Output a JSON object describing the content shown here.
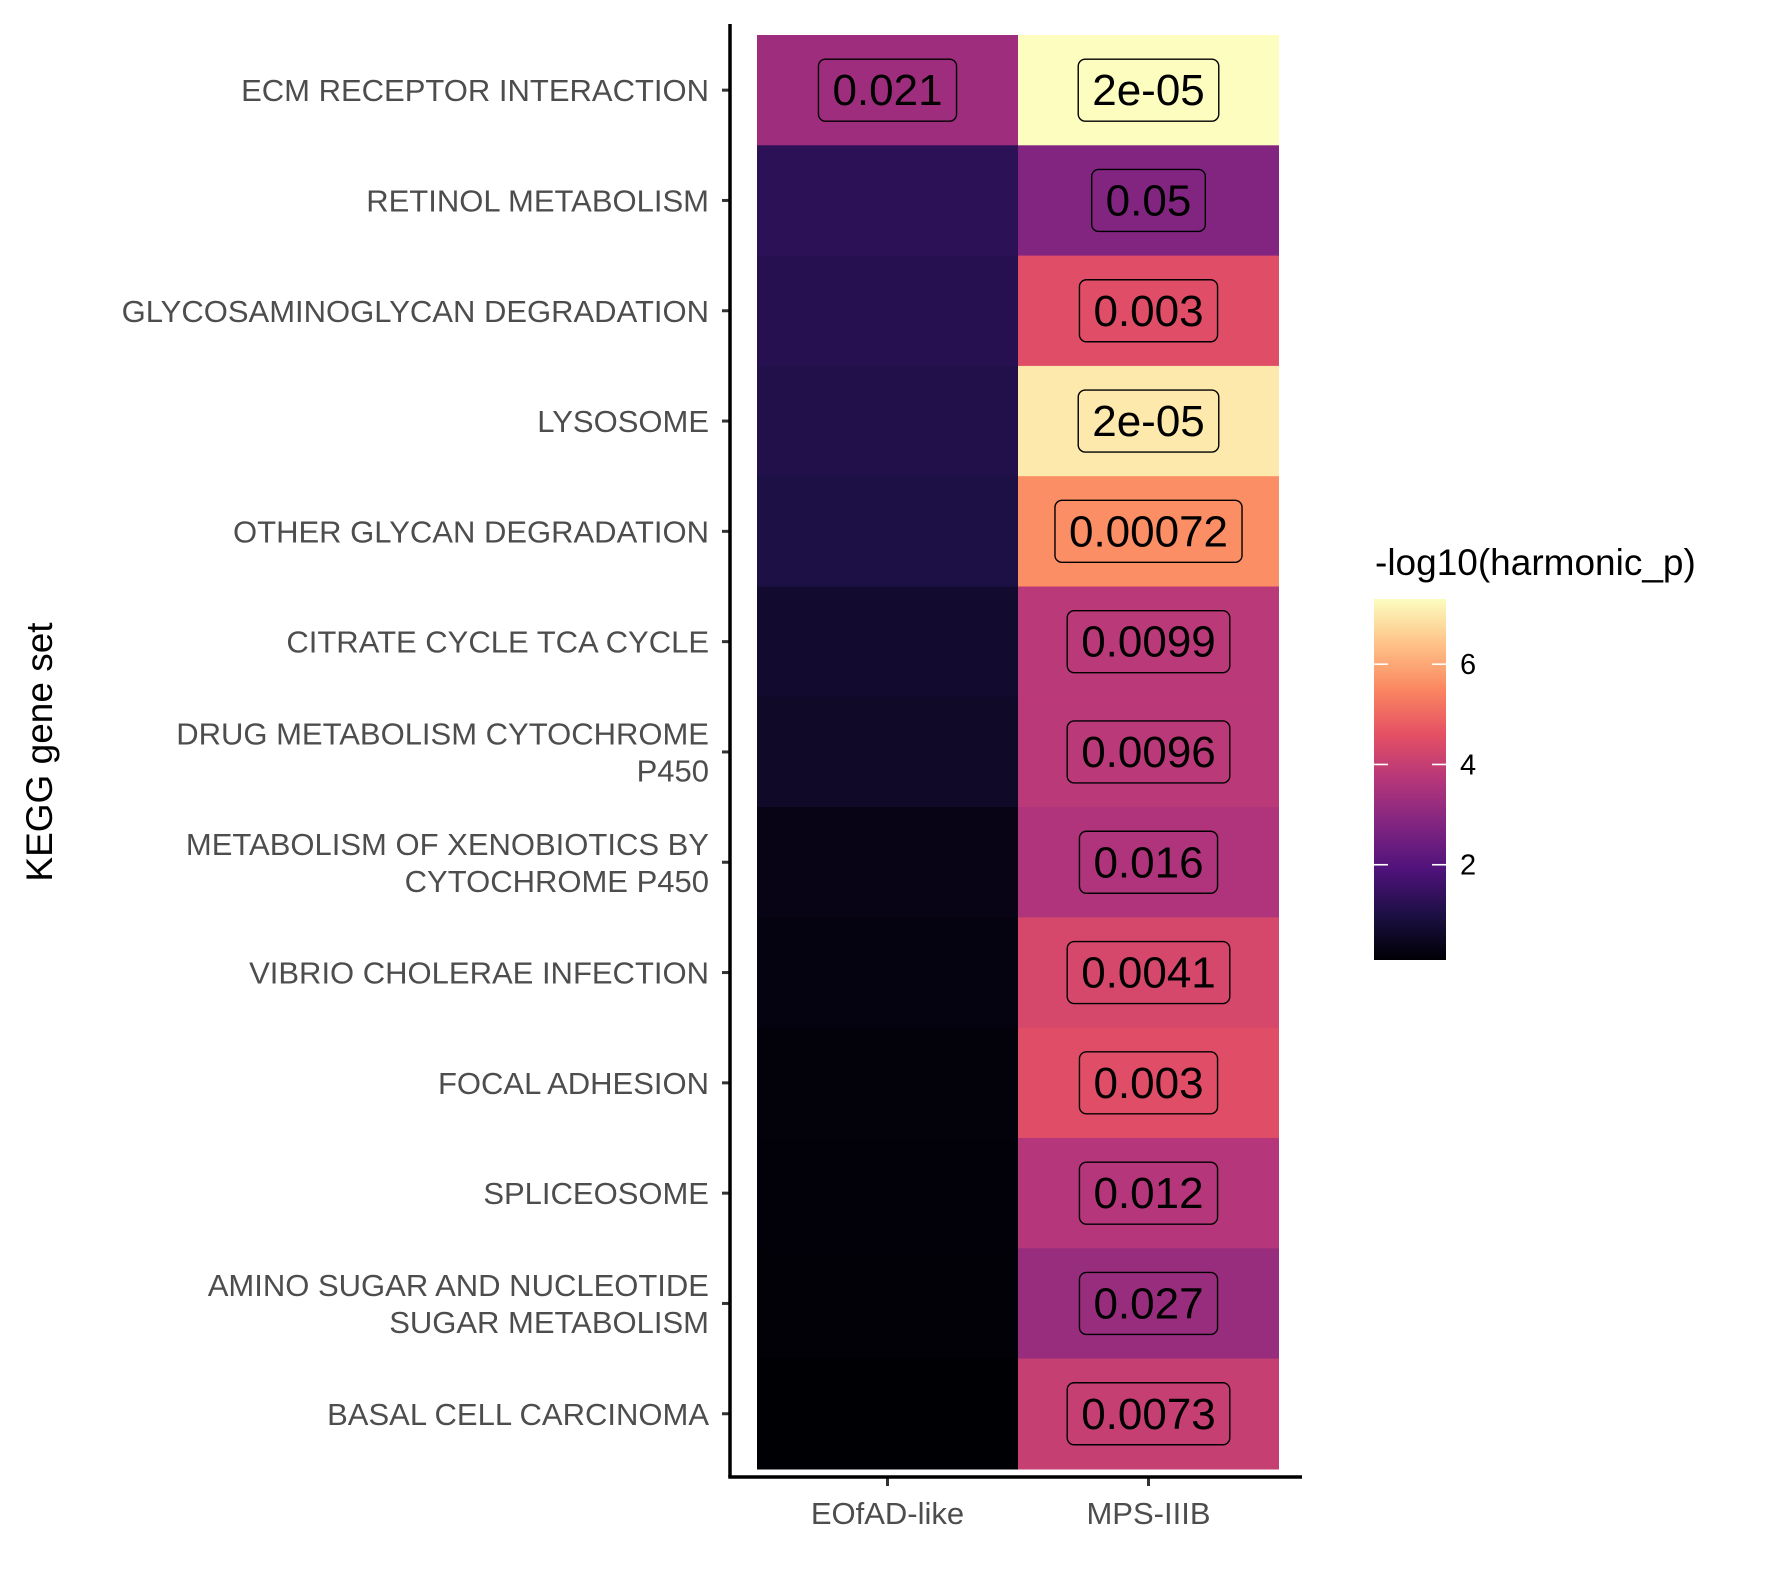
{
  "chart_data": {
    "type": "heatmap",
    "ylabel": "KEGG gene set",
    "xlabel": "",
    "x_categories": [
      "EOfAD-like",
      "MPS-IIIB"
    ],
    "y_categories": [
      [
        "ECM RECEPTOR INTERACTION"
      ],
      [
        "RETINOL METABOLISM"
      ],
      [
        "GLYCOSAMINOGLYCAN DEGRADATION"
      ],
      [
        "LYSOSOME"
      ],
      [
        "OTHER GLYCAN DEGRADATION"
      ],
      [
        "CITRATE CYCLE TCA CYCLE"
      ],
      [
        "DRUG METABOLISM CYTOCHROME",
        "P450"
      ],
      [
        "METABOLISM OF XENOBIOTICS BY",
        "CYTOCHROME P450"
      ],
      [
        "VIBRIO CHOLERAE INFECTION"
      ],
      [
        "FOCAL ADHESION"
      ],
      [
        "SPLICEOSOME"
      ],
      [
        "AMINO SUGAR AND NUCLEOTIDE",
        "SUGAR METABOLISM"
      ],
      [
        "BASAL CELL CARCINOMA"
      ]
    ],
    "values": [
      [
        3.3,
        7.3
      ],
      [
        1.3,
        2.8
      ],
      [
        1.2,
        4.5
      ],
      [
        1.1,
        7.0
      ],
      [
        1.0,
        5.6
      ],
      [
        0.7,
        3.8
      ],
      [
        0.6,
        3.8
      ],
      [
        0.35,
        3.6
      ],
      [
        0.25,
        4.3
      ],
      [
        0.2,
        4.5
      ],
      [
        0.18,
        3.7
      ],
      [
        0.15,
        3.2
      ],
      [
        0.1,
        4.0
      ]
    ],
    "cell_labels": [
      [
        "0.021",
        "2e-05"
      ],
      [
        "",
        "0.05"
      ],
      [
        "",
        "0.003"
      ],
      [
        "",
        "2e-05"
      ],
      [
        "",
        "0.00072"
      ],
      [
        "",
        "0.0099"
      ],
      [
        "",
        "0.0096"
      ],
      [
        "",
        "0.016"
      ],
      [
        "",
        "0.0041"
      ],
      [
        "",
        "0.003"
      ],
      [
        "",
        "0.012"
      ],
      [
        "",
        "0.027"
      ],
      [
        "",
        "0.0073"
      ]
    ],
    "colorbar": {
      "title": "-log10(harmonic_p)",
      "range": [
        0.1,
        7.3
      ],
      "ticks": [
        2,
        4,
        6
      ],
      "colormap": "magma",
      "stops": [
        "#000004",
        "#1c1044",
        "#4f127b",
        "#812581",
        "#b5367a",
        "#e55064",
        "#fb8761",
        "#fec287",
        "#fcfdbf"
      ]
    },
    "legend_position": "right",
    "grid": false
  }
}
